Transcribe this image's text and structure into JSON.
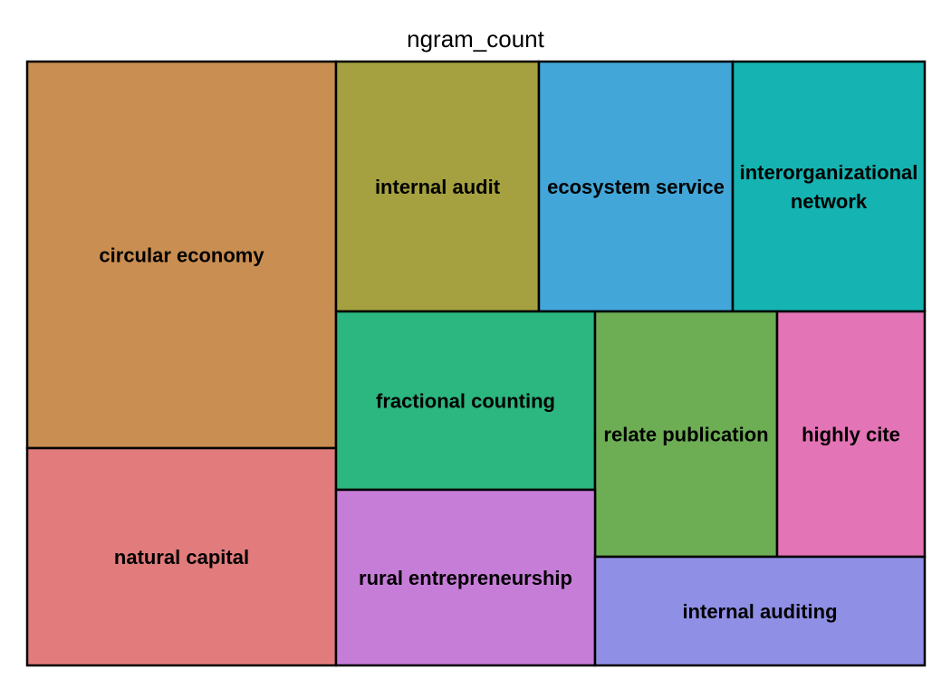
{
  "chart_data": {
    "type": "treemap",
    "title": "ngram_count",
    "tiles": [
      {
        "label": "circular economy",
        "color": "#C98E52"
      },
      {
        "label": "natural capital",
        "color": "#E27C7C"
      },
      {
        "label": "internal audit",
        "color": "#A5A140"
      },
      {
        "label": "ecosystem service",
        "color": "#42A7D8"
      },
      {
        "label": "interorganizational network",
        "color": "#15B3B1"
      },
      {
        "label": "fractional counting",
        "color": "#2BB77F"
      },
      {
        "label": "relate publication",
        "color": "#6DAE54"
      },
      {
        "label": "highly cite",
        "color": "#E374B5"
      },
      {
        "label": "rural entrepreneurship",
        "color": "#C67DD8"
      },
      {
        "label": "internal auditing",
        "color": "#8F8FE6"
      }
    ]
  }
}
